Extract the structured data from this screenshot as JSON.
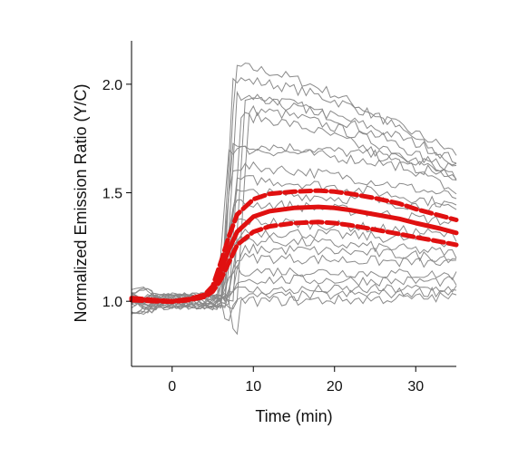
{
  "chart_data": {
    "type": "line",
    "xlabel": "Time (min)",
    "ylabel": "Normalized Emission Ratio (Y/C)",
    "xlim": [
      -5,
      35
    ],
    "ylim": [
      0.7,
      2.2
    ],
    "xticks": [
      0,
      10,
      20,
      30
    ],
    "yticks": [
      1.0,
      1.5,
      2.0
    ],
    "xtick_labels": [
      "0",
      "10",
      "20",
      "30"
    ],
    "ytick_labels": [
      "1.0",
      "1.5",
      "2.0"
    ],
    "grid": false,
    "colors": {
      "traces": "#8a8a8a",
      "mean": "#e01010",
      "ci": "#e01010",
      "axis": "#000000"
    },
    "traces": [
      {
        "plateau": 2.08,
        "onset": 6.3,
        "end": 1.62,
        "dip": 1.0
      },
      {
        "plateau": 2.02,
        "onset": 6.0,
        "end": 1.68,
        "dip": 1.0
      },
      {
        "plateau": 1.95,
        "onset": 6.5,
        "end": 1.57,
        "dip": 1.0
      },
      {
        "plateau": 1.92,
        "onset": 7.5,
        "end": 1.65,
        "dip": 1.0
      },
      {
        "plateau": 1.88,
        "onset": 8.0,
        "end": 1.55,
        "dip": 1.0
      },
      {
        "plateau": 1.85,
        "onset": 7.0,
        "end": 1.5,
        "dip": 1.0
      },
      {
        "plateau": 1.72,
        "onset": 6.0,
        "end": 1.62,
        "dip": 1.0
      },
      {
        "plateau": 1.7,
        "onset": 5.5,
        "end": 1.58,
        "dip": 1.0
      },
      {
        "plateau": 1.62,
        "onset": 5.8,
        "end": 1.48,
        "dip": 1.0
      },
      {
        "plateau": 1.56,
        "onset": 6.5,
        "end": 1.44,
        "dip": 1.0
      },
      {
        "plateau": 1.5,
        "onset": 6.2,
        "end": 1.42,
        "dip": 1.0
      },
      {
        "plateau": 1.45,
        "onset": 6.0,
        "end": 1.36,
        "dip": 1.0
      },
      {
        "plateau": 1.37,
        "onset": 5.7,
        "end": 1.3,
        "dip": 1.0
      },
      {
        "plateau": 1.32,
        "onset": 6.8,
        "end": 1.27,
        "dip": 1.0
      },
      {
        "plateau": 1.28,
        "onset": 6.0,
        "end": 1.22,
        "dip": 1.0
      },
      {
        "plateau": 1.24,
        "onset": 7.2,
        "end": 1.2,
        "dip": 1.0
      },
      {
        "plateau": 1.2,
        "onset": 6.4,
        "end": 1.17,
        "dip": 1.0
      },
      {
        "plateau": 1.14,
        "onset": 5.9,
        "end": 1.12,
        "dip": 1.0
      },
      {
        "plateau": 1.1,
        "onset": 6.6,
        "end": 1.09,
        "dip": 1.0
      },
      {
        "plateau": 1.05,
        "onset": 5.5,
        "end": 1.06,
        "dip": 1.0
      },
      {
        "plateau": 1.02,
        "onset": 7.0,
        "end": 1.05,
        "dip": 0.85
      },
      {
        "plateau": 1.0,
        "onset": 6.0,
        "end": 1.02,
        "dip": 0.88
      }
    ],
    "series": [
      {
        "role": "upper-ci",
        "style": "dashed",
        "x": [
          -5,
          -2,
          0,
          2,
          4,
          5,
          6,
          7,
          8,
          10,
          12,
          15,
          18,
          20,
          22,
          25,
          28,
          30,
          33,
          35
        ],
        "y": [
          1.015,
          1.005,
          1.0,
          1.01,
          1.03,
          1.07,
          1.18,
          1.3,
          1.4,
          1.47,
          1.495,
          1.505,
          1.51,
          1.505,
          1.495,
          1.475,
          1.45,
          1.425,
          1.395,
          1.375
        ]
      },
      {
        "role": "mean",
        "style": "solid",
        "x": [
          -5,
          -2,
          0,
          2,
          4,
          5,
          6,
          7,
          8,
          10,
          12,
          15,
          18,
          20,
          22,
          25,
          28,
          30,
          33,
          35
        ],
        "y": [
          1.01,
          1.003,
          1.0,
          1.008,
          1.025,
          1.055,
          1.14,
          1.24,
          1.32,
          1.39,
          1.415,
          1.43,
          1.435,
          1.43,
          1.42,
          1.4,
          1.38,
          1.36,
          1.335,
          1.315
        ]
      },
      {
        "role": "lower-ci",
        "style": "dashed",
        "x": [
          -5,
          -2,
          0,
          2,
          4,
          5,
          6,
          7,
          8,
          10,
          12,
          15,
          18,
          20,
          22,
          25,
          28,
          30,
          33,
          35
        ],
        "y": [
          1.005,
          1.0,
          0.998,
          1.005,
          1.02,
          1.045,
          1.1,
          1.18,
          1.26,
          1.32,
          1.345,
          1.36,
          1.365,
          1.36,
          1.35,
          1.33,
          1.31,
          1.295,
          1.275,
          1.26
        ]
      }
    ]
  }
}
